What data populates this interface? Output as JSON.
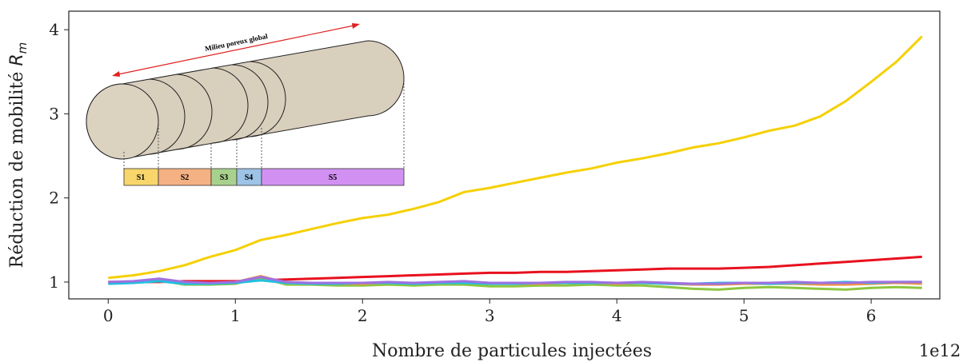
{
  "chart_data": {
    "type": "line",
    "xlabel": "Nombre de particules injectées",
    "x_offset_label": "1e12",
    "ylabel": "Réduction de mobilité ",
    "ylabel_symbol": "R",
    "ylabel_subscript": "m",
    "x": [
      0,
      0.2,
      0.4,
      0.6,
      0.8,
      1.0,
      1.2,
      1.4,
      1.6,
      1.8,
      2.0,
      2.2,
      2.4,
      2.6,
      2.8,
      3.0,
      3.2,
      3.4,
      3.6,
      3.8,
      4.0,
      4.2,
      4.4,
      4.6,
      4.8,
      5.0,
      5.2,
      5.4,
      5.6,
      5.8,
      6.0,
      6.2,
      6.4
    ],
    "series": [
      {
        "color": "#f5d000",
        "values": [
          1.05,
          1.08,
          1.13,
          1.2,
          1.3,
          1.38,
          1.5,
          1.56,
          1.63,
          1.7,
          1.76,
          1.8,
          1.87,
          1.95,
          2.07,
          2.12,
          2.18,
          2.24,
          2.3,
          2.35,
          2.42,
          2.47,
          2.53,
          2.6,
          2.65,
          2.72,
          2.8,
          2.86,
          2.97,
          3.15,
          3.38,
          3.62,
          3.92
        ]
      },
      {
        "color": "#e8111e",
        "values": [
          1.0,
          1.0,
          1.0,
          1.01,
          1.01,
          1.01,
          1.02,
          1.03,
          1.04,
          1.05,
          1.06,
          1.07,
          1.08,
          1.09,
          1.1,
          1.11,
          1.11,
          1.12,
          1.12,
          1.13,
          1.14,
          1.15,
          1.16,
          1.16,
          1.16,
          1.17,
          1.18,
          1.2,
          1.22,
          1.24,
          1.26,
          1.28,
          1.3
        ]
      },
      {
        "color": "#8dc63f",
        "values": [
          1.0,
          1.0,
          1.02,
          0.97,
          0.97,
          0.98,
          1.05,
          0.97,
          0.97,
          0.96,
          0.96,
          0.97,
          0.96,
          0.97,
          0.97,
          0.95,
          0.95,
          0.96,
          0.96,
          0.97,
          0.96,
          0.96,
          0.94,
          0.92,
          0.91,
          0.93,
          0.94,
          0.93,
          0.92,
          0.91,
          0.93,
          0.94,
          0.93
        ]
      },
      {
        "color": "#f29540",
        "values": [
          0.99,
          1.0,
          1.03,
          0.99,
          0.98,
          1.0,
          1.07,
          0.99,
          0.98,
          0.98,
          0.98,
          0.99,
          0.98,
          0.99,
          1.0,
          0.99,
          0.98,
          0.98,
          0.99,
          0.99,
          0.98,
          0.99,
          0.98,
          0.97,
          0.97,
          0.98,
          0.98,
          0.98,
          0.97,
          0.97,
          0.98,
          0.99,
          0.98
        ]
      },
      {
        "color": "#1ec0e0",
        "values": [
          0.98,
          0.99,
          1.01,
          0.98,
          0.98,
          0.99,
          1.02,
          0.99,
          0.98,
          0.98,
          0.99,
          0.99,
          0.98,
          0.99,
          0.99,
          0.98,
          0.98,
          0.99,
          0.99,
          0.99,
          0.99,
          0.99,
          0.98,
          0.98,
          0.99,
          0.99,
          0.98,
          0.99,
          0.99,
          1.0,
          0.99,
          1.0,
          1.0
        ]
      },
      {
        "color": "#a070e0",
        "values": [
          1.0,
          1.01,
          1.04,
          1.0,
          0.99,
          1.0,
          1.06,
          1.0,
          0.99,
          0.99,
          0.99,
          1.0,
          0.99,
          1.0,
          1.01,
          0.99,
          0.99,
          0.99,
          1.0,
          1.0,
          0.99,
          1.0,
          0.99,
          0.98,
          0.98,
          0.99,
          0.99,
          1.0,
          0.99,
          0.99,
          1.0,
          1.0,
          1.0
        ]
      }
    ],
    "xlim": [
      -0.31,
      6.54
    ],
    "ylim": [
      0.8,
      4.22
    ],
    "xticks": [
      0,
      1,
      2,
      3,
      4,
      5,
      6
    ],
    "yticks": [
      1,
      2,
      3,
      4
    ],
    "grid": false
  },
  "inset": {
    "title": "Milieu poreux global",
    "segments": [
      "S1",
      "S2",
      "S3",
      "S4",
      "S5"
    ]
  }
}
